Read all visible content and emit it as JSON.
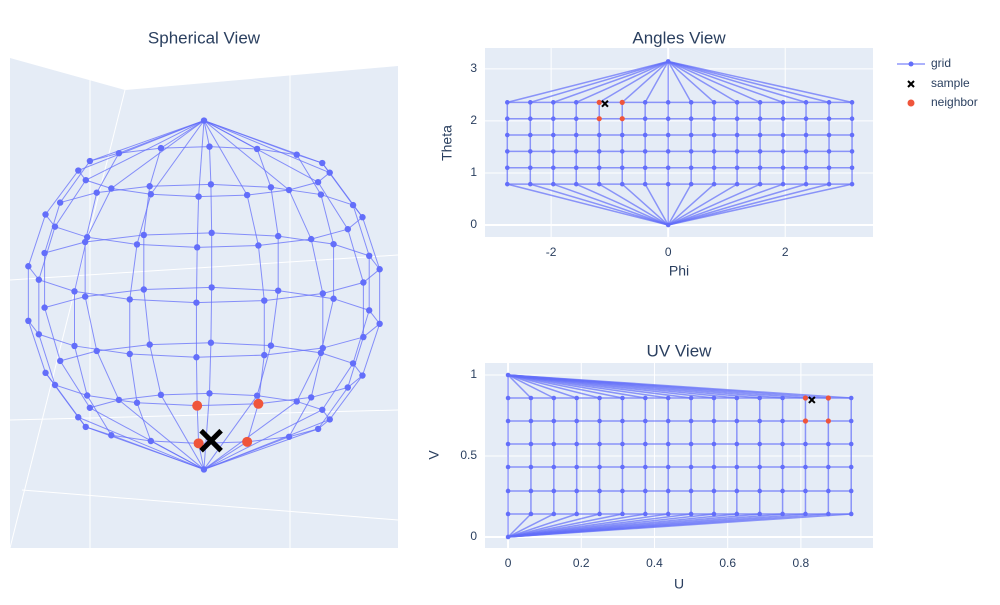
{
  "chart_data": [
    {
      "type": "scatter3d",
      "title": "Spherical View"
    },
    {
      "type": "scatter",
      "title": "Angles View",
      "x_label": "Phi",
      "y_label": "Theta",
      "xlim": [
        -3.13,
        3.5
      ],
      "ylim": [
        -0.23,
        3.4
      ],
      "xticks": [
        -2,
        0,
        2
      ],
      "yticks": [
        0,
        1,
        2,
        3
      ],
      "grid": true,
      "series": [
        {
          "name": "grid",
          "color": "#636efa",
          "x": [
            -2.749,
            -2.356,
            -1.963,
            -1.571,
            -1.178,
            -0.785,
            -0.393,
            0,
            0.393,
            0.785,
            1.178,
            1.571,
            1.963,
            2.356,
            2.749,
            3.142
          ],
          "rows": [
            0.785,
            1.1,
            1.414,
            1.728,
            2.042,
            2.356
          ],
          "pole_x": [
            0,
            0
          ],
          "pole_y": [
            0,
            3.142
          ]
        },
        {
          "name": "sample",
          "color": "#000000",
          "x": [
            -1.08
          ],
          "values": [
            2.33
          ]
        },
        {
          "name": "neighbor",
          "color": "#ef553b",
          "x": [
            -1.178,
            -0.785,
            -1.178,
            -0.785
          ],
          "values": [
            2.356,
            2.356,
            2.042,
            2.042
          ]
        }
      ]
    },
    {
      "type": "scatter",
      "title": "UV View",
      "x_label": "U",
      "y_label": "V",
      "xlim": [
        -0.063,
        0.997
      ],
      "ylim": [
        -0.068,
        1.074
      ],
      "xticks": [
        0,
        0.2,
        0.4,
        0.6,
        0.8
      ],
      "yticks": [
        0,
        0.5,
        1
      ],
      "grid": true,
      "series": [
        {
          "color": "#636efa",
          "x": [
            0,
            0.0625,
            0.125,
            0.1875,
            0.25,
            0.3125,
            0.375,
            0.4375,
            0.5,
            0.5625,
            0.625,
            0.6875,
            0.75,
            0.8125,
            0.875,
            0.9375
          ],
          "rows": [
            0.142,
            0.284,
            0.432,
            0.574,
            0.716,
            0.858
          ],
          "pole_x": [
            0,
            0
          ],
          "pole_y": [
            0,
            1
          ]
        },
        {
          "color": "#000000",
          "x": [
            0.83
          ],
          "values": [
            0.846
          ]
        },
        {
          "color": "#ef553b",
          "x": [
            0.8125,
            0.875,
            0.8125,
            0.875
          ],
          "values": [
            0.858,
            0.858,
            0.716,
            0.716
          ]
        }
      ]
    }
  ]
}
